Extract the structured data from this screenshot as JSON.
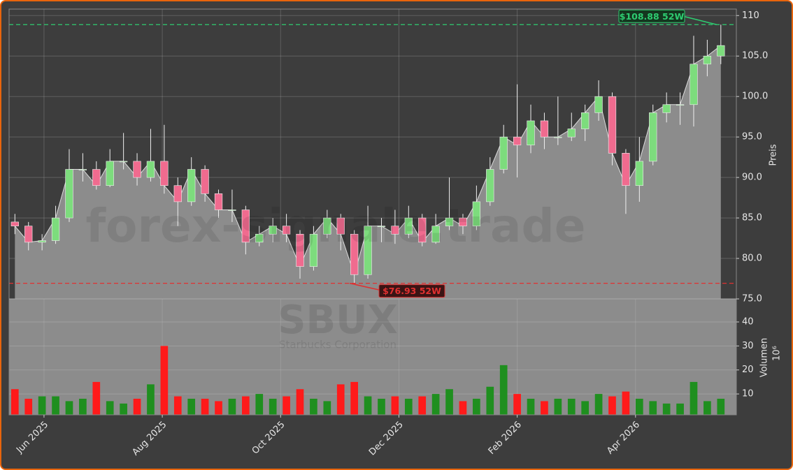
{
  "chart_data": {
    "type": "candlestick",
    "title": "SBUX",
    "subtitle": "Starbucks Corporation",
    "watermark": "forex-signale.trade",
    "y_label": "Preis",
    "y2_label": "Volumen",
    "y2_unit": "10⁶",
    "x": [
      0,
      7,
      14,
      21,
      28,
      35,
      42,
      49,
      56,
      63,
      70,
      77,
      84,
      91,
      98,
      105,
      112,
      119,
      126,
      133,
      140,
      147,
      154,
      161,
      168,
      175,
      182,
      189,
      196,
      203,
      210,
      217,
      224,
      231,
      238,
      245,
      252,
      259,
      266,
      273,
      280,
      287,
      294,
      301,
      308,
      315,
      322,
      329,
      336,
      343,
      350,
      357,
      364
    ],
    "open": [
      84.5,
      84,
      82,
      82.2,
      85,
      91,
      91,
      89,
      92,
      92,
      90,
      92,
      89,
      87,
      91,
      88,
      86,
      86,
      82,
      83,
      84,
      83,
      79,
      83,
      85,
      83,
      78,
      84,
      84,
      83,
      85,
      82,
      84,
      85,
      84,
      87,
      91,
      95,
      94,
      97,
      95,
      95,
      96,
      98,
      100,
      93,
      89,
      92,
      98,
      99,
      99,
      104,
      105
    ],
    "high": [
      85.5,
      84.5,
      83,
      86.5,
      93.5,
      93,
      92,
      93.5,
      95.5,
      93,
      96,
      96.5,
      90,
      92.5,
      91.5,
      88.5,
      88.5,
      86.5,
      84,
      85,
      85.5,
      83.5,
      84,
      86,
      85.5,
      83.5,
      86.5,
      85,
      86,
      86.5,
      85.5,
      85.5,
      90,
      85.5,
      89,
      92.5,
      96.5,
      101.5,
      99,
      98,
      100,
      98,
      99,
      102,
      100.5,
      93.5,
      95,
      99,
      100.5,
      100.5,
      107.5,
      107,
      108.88
    ],
    "low": [
      83,
      81,
      81,
      81.8,
      84.5,
      89.5,
      88.5,
      88.8,
      91,
      89,
      89.5,
      88,
      84,
      86.5,
      87,
      85,
      84.5,
      80.5,
      81.5,
      82,
      82,
      77.5,
      78.5,
      82.5,
      81,
      76.93,
      77.5,
      82,
      81.8,
      82.5,
      81.5,
      81.8,
      83.5,
      83,
      83.5,
      86.5,
      90.5,
      90,
      93,
      93.5,
      94,
      94.5,
      94.5,
      97,
      91.5,
      85.5,
      87,
      91.5,
      96.8,
      96.5,
      96.3,
      102.5,
      104
    ],
    "close": [
      84,
      82,
      82.2,
      85,
      91,
      91,
      89,
      92,
      92,
      90,
      92,
      89,
      87,
      91,
      88,
      86,
      86,
      82,
      83,
      84,
      83,
      79,
      83,
      85,
      83,
      78,
      84,
      84,
      83,
      85,
      82,
      84,
      85,
      84,
      87,
      91,
      95,
      94,
      97,
      95,
      95,
      96,
      98,
      100,
      93,
      89,
      92,
      98,
      99,
      99,
      104,
      105,
      106.3
    ],
    "volume": [
      12,
      8,
      9,
      9,
      7,
      8,
      15,
      7,
      6,
      8,
      14,
      30,
      9,
      8,
      8,
      7,
      8,
      9,
      10,
      8,
      9,
      12,
      8,
      7,
      14,
      15,
      9,
      8,
      9,
      8,
      9,
      10,
      12,
      7,
      8,
      13,
      22,
      10,
      8,
      7,
      8,
      8,
      7,
      10,
      9,
      11,
      8,
      7,
      6,
      6,
      15,
      7,
      8
    ],
    "up_color": "#7ddc7d",
    "down_color": "#f06b8f",
    "volume_up_color": "#1f8f1f",
    "volume_down_color": "#ff1a1a",
    "area_color": "#8c8c8c",
    "xlim": [
      -3,
      372
    ],
    "xticks": [
      {
        "value": 15,
        "label": "Jun 2025"
      },
      {
        "value": 76,
        "label": "Aug 2025"
      },
      {
        "value": 137,
        "label": "Oct 2025"
      },
      {
        "value": 198,
        "label": "Dec 2025"
      },
      {
        "value": 259,
        "label": "Feb 2026"
      },
      {
        "value": 320,
        "label": "Apr 2026"
      }
    ],
    "ylim": [
      75,
      110.8
    ],
    "yticks": [
      {
        "value": 75,
        "label": "75.0"
      },
      {
        "value": 80,
        "label": "80.0"
      },
      {
        "value": 85,
        "label": "85.0"
      },
      {
        "value": 90,
        "label": "90.0"
      },
      {
        "value": 95,
        "label": "95.0"
      },
      {
        "value": 100,
        "label": "100.0"
      },
      {
        "value": 105,
        "label": "105.0"
      },
      110
    ],
    "y2lim": [
      1.3,
      49.6
    ],
    "y2ticks": [
      10,
      20,
      30,
      40
    ],
    "grid": true,
    "annotations": [
      {
        "label": "$108.88 52W",
        "value": 108.88,
        "color": "#2ecc71"
      },
      {
        "label": "$76.93 52W",
        "value": 76.93,
        "color": "#e03030"
      }
    ]
  }
}
